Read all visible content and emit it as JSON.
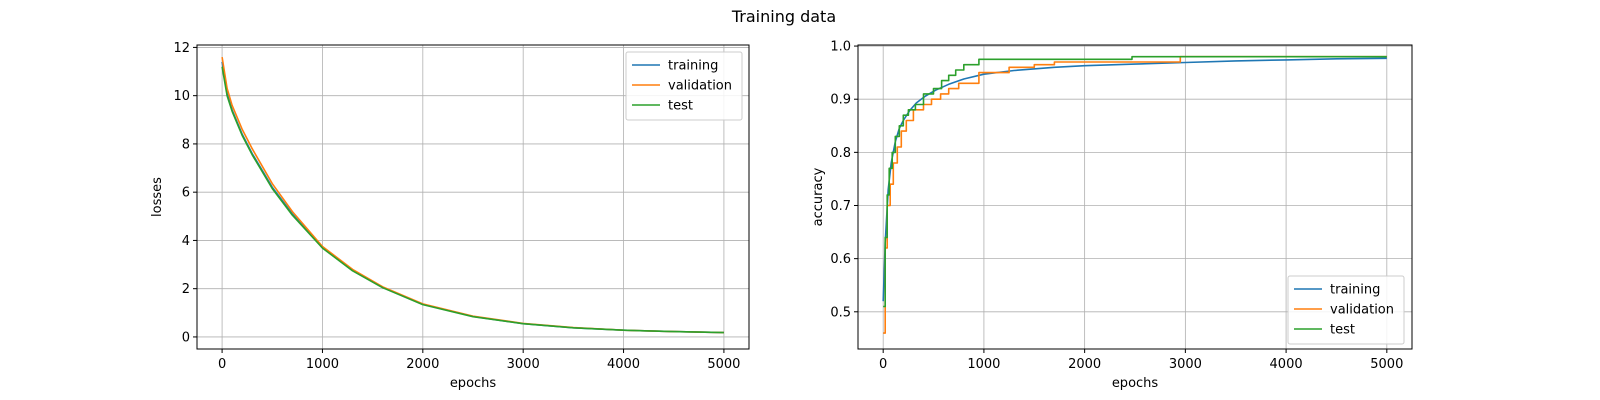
{
  "figure": {
    "title": "Training data"
  },
  "colors": {
    "training": "#1f77b4",
    "validation": "#ff7f0e",
    "test": "#2ca02c"
  },
  "chart_data": [
    {
      "type": "line",
      "xlabel": "epochs",
      "ylabel": "losses",
      "xlim": [
        -250,
        5250
      ],
      "ylim": [
        -0.5,
        12.1
      ],
      "xticks": [
        0,
        1000,
        2000,
        3000,
        4000,
        5000
      ],
      "xtick_labels": [
        "0",
        "1000",
        "2000",
        "3000",
        "4000",
        "5000"
      ],
      "yticks": [
        0,
        2,
        4,
        6,
        8,
        10,
        12
      ],
      "ytick_labels": [
        "0",
        "2",
        "4",
        "6",
        "8",
        "10",
        "12"
      ],
      "grid": true,
      "legend_position": "top-right",
      "legend_labels": [
        "training",
        "validation",
        "test"
      ],
      "series": [
        {
          "name": "training",
          "color_key": "training",
          "x": [
            0,
            50,
            100,
            200,
            300,
            500,
            700,
            1000,
            1300,
            1600,
            2000,
            2500,
            3000,
            3500,
            4000,
            4500,
            5000
          ],
          "y": [
            11.4,
            10.1,
            9.4,
            8.4,
            7.6,
            6.2,
            5.1,
            3.7,
            2.75,
            2.05,
            1.35,
            0.85,
            0.55,
            0.38,
            0.28,
            0.22,
            0.18
          ]
        },
        {
          "name": "validation",
          "color_key": "validation",
          "x": [
            0,
            50,
            100,
            200,
            300,
            500,
            700,
            1000,
            1300,
            1600,
            2000,
            2500,
            3000,
            3500,
            4000,
            4500,
            5000
          ],
          "y": [
            11.6,
            10.3,
            9.6,
            8.6,
            7.8,
            6.35,
            5.2,
            3.75,
            2.8,
            2.08,
            1.37,
            0.86,
            0.56,
            0.39,
            0.28,
            0.22,
            0.18
          ]
        },
        {
          "name": "test",
          "color_key": "test",
          "x": [
            0,
            50,
            100,
            200,
            300,
            500,
            700,
            1000,
            1300,
            1600,
            2000,
            2500,
            3000,
            3500,
            4000,
            4500,
            5000
          ],
          "y": [
            11.2,
            10.0,
            9.35,
            8.35,
            7.55,
            6.15,
            5.05,
            3.68,
            2.74,
            2.04,
            1.34,
            0.84,
            0.55,
            0.38,
            0.28,
            0.22,
            0.18
          ]
        }
      ]
    },
    {
      "type": "line",
      "xlabel": "epochs",
      "ylabel": "accuracy",
      "xlim": [
        -250,
        5250
      ],
      "ylim": [
        0.43,
        1.002
      ],
      "xticks": [
        0,
        1000,
        2000,
        3000,
        4000,
        5000
      ],
      "xtick_labels": [
        "0",
        "1000",
        "2000",
        "3000",
        "4000",
        "5000"
      ],
      "yticks": [
        0.5,
        0.6,
        0.7,
        0.8,
        0.9,
        1.0
      ],
      "ytick_labels": [
        "0.5",
        "0.6",
        "0.7",
        "0.8",
        "0.9",
        "1.0"
      ],
      "grid": true,
      "legend_position": "bottom-right",
      "legend_labels": [
        "training",
        "validation",
        "test"
      ],
      "series": [
        {
          "name": "training",
          "color_key": "training",
          "step": false,
          "x": [
            0,
            20,
            50,
            80,
            120,
            160,
            200,
            260,
            330,
            420,
            520,
            650,
            800,
            1000,
            1300,
            1700,
            2000,
            2500,
            3000,
            3500,
            4000,
            4500,
            5000
          ],
          "y": [
            0.52,
            0.63,
            0.73,
            0.78,
            0.82,
            0.845,
            0.86,
            0.878,
            0.893,
            0.906,
            0.917,
            0.928,
            0.938,
            0.947,
            0.954,
            0.96,
            0.963,
            0.966,
            0.969,
            0.972,
            0.974,
            0.976,
            0.977
          ]
        },
        {
          "name": "validation",
          "color_key": "validation",
          "step": true,
          "x": [
            0,
            20,
            40,
            70,
            100,
            140,
            180,
            230,
            300,
            400,
            480,
            570,
            650,
            750,
            950,
            1250,
            1500,
            1700,
            2000,
            2500,
            2950,
            5000
          ],
          "y": [
            0.46,
            0.62,
            0.7,
            0.74,
            0.78,
            0.81,
            0.84,
            0.86,
            0.88,
            0.89,
            0.9,
            0.91,
            0.92,
            0.93,
            0.95,
            0.96,
            0.965,
            0.97,
            0.97,
            0.97,
            0.98,
            0.98
          ]
        },
        {
          "name": "test",
          "color_key": "test",
          "step": true,
          "x": [
            0,
            20,
            40,
            60,
            90,
            120,
            160,
            200,
            250,
            320,
            400,
            500,
            580,
            650,
            720,
            800,
            950,
            1400,
            2000,
            2470,
            5000
          ],
          "y": [
            0.51,
            0.64,
            0.72,
            0.77,
            0.8,
            0.83,
            0.85,
            0.87,
            0.88,
            0.89,
            0.91,
            0.92,
            0.935,
            0.945,
            0.955,
            0.965,
            0.975,
            0.975,
            0.975,
            0.98,
            0.98
          ]
        }
      ]
    }
  ]
}
